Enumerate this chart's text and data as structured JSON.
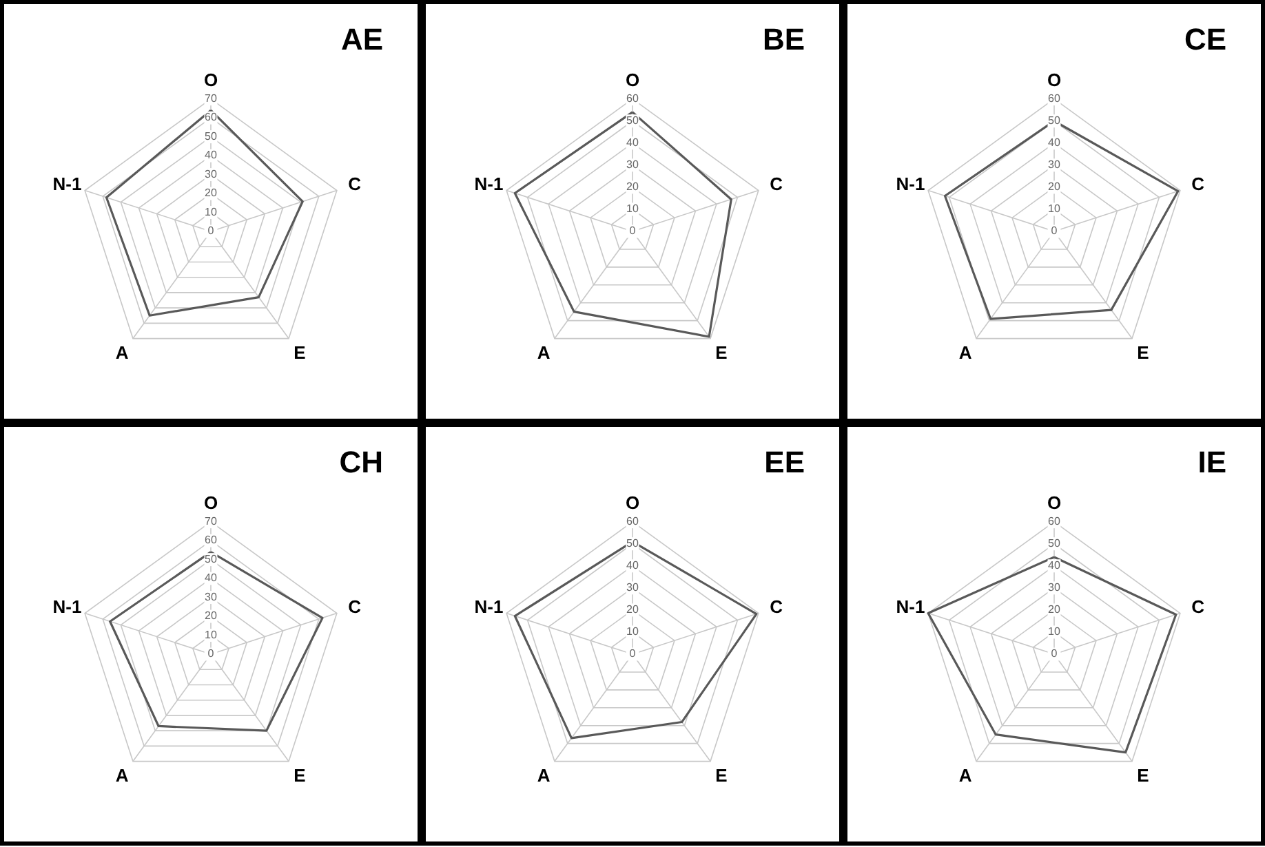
{
  "chart_data": [
    {
      "type": "radar",
      "title": "AE",
      "categories": [
        "O",
        "C",
        "E",
        "A",
        "N-1"
      ],
      "ylim": [
        0,
        70
      ],
      "yticks": [
        0,
        10,
        20,
        30,
        40,
        50,
        60,
        70
      ],
      "grid": true,
      "series": [
        {
          "color": "#595959",
          "values": [
            64,
            51,
            43,
            55,
            58
          ]
        }
      ]
    },
    {
      "type": "radar",
      "title": "BE",
      "categories": [
        "O",
        "C",
        "E",
        "A",
        "N-1"
      ],
      "ylim": [
        0,
        60
      ],
      "yticks": [
        0,
        10,
        20,
        30,
        40,
        50,
        60
      ],
      "grid": true,
      "series": [
        {
          "color": "#595959",
          "values": [
            54,
            47,
            59,
            45,
            56
          ]
        }
      ]
    },
    {
      "type": "radar",
      "title": "CE",
      "categories": [
        "O",
        "C",
        "E",
        "A",
        "N-1"
      ],
      "ylim": [
        0,
        60
      ],
      "yticks": [
        0,
        10,
        20,
        30,
        40,
        50,
        60
      ],
      "grid": true,
      "series": [
        {
          "color": "#595959",
          "values": [
            50,
            59,
            44,
            49,
            52
          ]
        }
      ]
    },
    {
      "type": "radar",
      "title": "CH",
      "categories": [
        "O",
        "C",
        "E",
        "A",
        "N-1"
      ],
      "ylim": [
        0,
        70
      ],
      "yticks": [
        0,
        10,
        20,
        30,
        40,
        50,
        60,
        70
      ],
      "grid": true,
      "series": [
        {
          "color": "#595959",
          "values": [
            54,
            62,
            50,
            47,
            56
          ]
        }
      ]
    },
    {
      "type": "radar",
      "title": "EE",
      "categories": [
        "O",
        "C",
        "E",
        "A",
        "N-1"
      ],
      "ylim": [
        0,
        60
      ],
      "yticks": [
        0,
        10,
        20,
        30,
        40,
        50,
        60
      ],
      "grid": true,
      "series": [
        {
          "color": "#595959",
          "values": [
            51,
            59,
            38,
            47,
            56
          ]
        }
      ]
    },
    {
      "type": "radar",
      "title": "IE",
      "categories": [
        "O",
        "C",
        "E",
        "A",
        "N-1"
      ],
      "ylim": [
        0,
        60
      ],
      "yticks": [
        0,
        10,
        20,
        30,
        40,
        50,
        60
      ],
      "grid": true,
      "series": [
        {
          "color": "#595959",
          "values": [
            44,
            58,
            55,
            45,
            60
          ]
        }
      ]
    }
  ]
}
